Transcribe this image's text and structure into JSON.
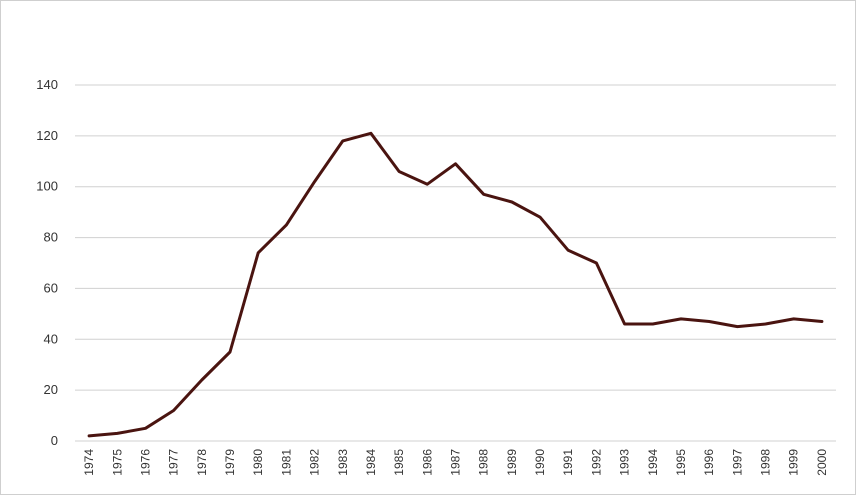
{
  "chart_data": {
    "type": "line",
    "title": "",
    "xlabel": "",
    "ylabel": "",
    "ylim": [
      0,
      140
    ],
    "yticks": [
      "0",
      "20",
      "40",
      "60",
      "80",
      "100",
      "120",
      "140"
    ],
    "grid": true,
    "legend": "none",
    "categories": [
      "1974",
      "1975",
      "1976",
      "1977",
      "1978",
      "1979",
      "1980",
      "1981",
      "1982",
      "1983",
      "1984",
      "1985",
      "1986",
      "1987",
      "1988",
      "1989",
      "1990",
      "1991",
      "1992",
      "1993",
      "1994",
      "1995",
      "1996",
      "1997",
      "1998",
      "1999",
      "2000"
    ],
    "series": [
      {
        "color": "#4a1410",
        "values": [
          2,
          3,
          5,
          12,
          24,
          35,
          74,
          85,
          102,
          118,
          121,
          106,
          101,
          109,
          97,
          94,
          88,
          75,
          70,
          46,
          46,
          48,
          47,
          45,
          46,
          48,
          47
        ]
      }
    ]
  }
}
